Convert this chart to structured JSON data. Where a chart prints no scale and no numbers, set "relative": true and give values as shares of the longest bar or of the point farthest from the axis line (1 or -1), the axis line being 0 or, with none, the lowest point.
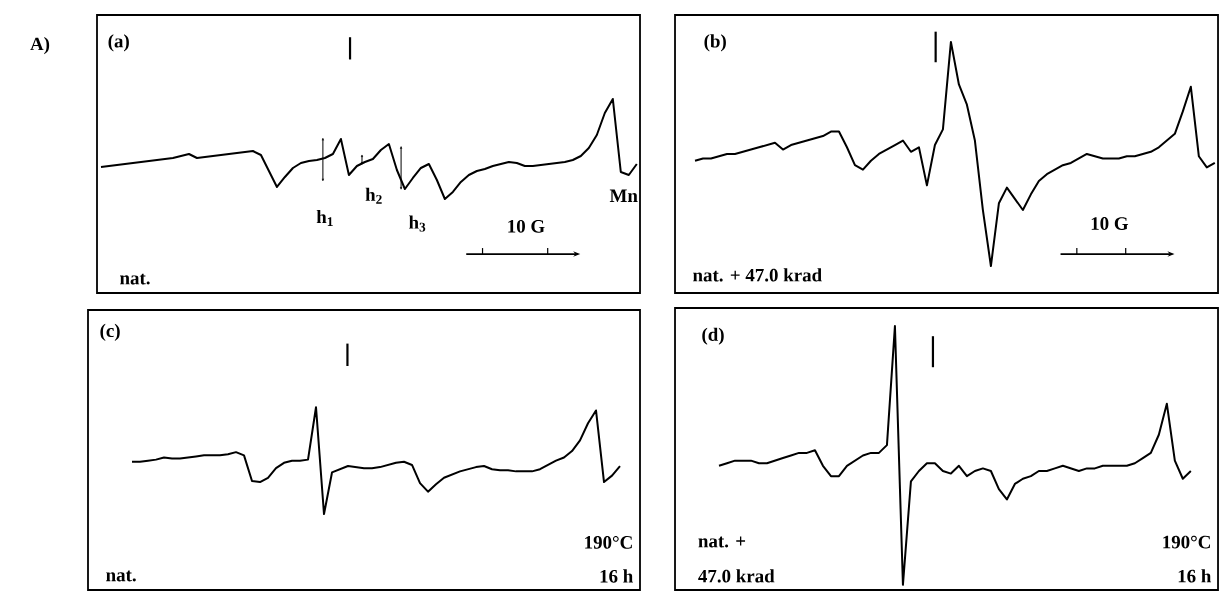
{
  "chart_data": [
    {
      "type": "line",
      "relative": true,
      "color": "#000000",
      "categories": [
        null,
        null,
        null,
        null,
        null,
        null,
        null,
        null,
        null,
        null,
        null,
        null,
        null,
        null,
        null,
        null,
        null,
        null,
        null,
        null,
        null,
        null,
        null,
        null,
        null,
        null,
        null,
        null,
        null,
        null,
        null,
        null,
        null,
        null,
        null,
        null,
        null,
        null,
        null,
        null,
        null,
        null,
        null,
        null,
        null,
        null,
        null,
        null,
        null,
        null,
        null,
        null,
        null,
        null,
        null,
        null,
        null,
        null,
        null,
        null,
        null,
        null,
        null,
        null,
        null,
        null,
        null,
        null
      ],
      "values": [
        0.32,
        0.33,
        0.34,
        0.35,
        0.36,
        0.37,
        0.38,
        0.39,
        0.4,
        0.41,
        0.43,
        0.45,
        0.41,
        0.42,
        0.43,
        0.44,
        0.45,
        0.46,
        0.47,
        0.48,
        0.44,
        0.28,
        0.12,
        0.22,
        0.31,
        0.36,
        0.38,
        0.39,
        0.41,
        0.45,
        0.6,
        0.24,
        0.33,
        0.37,
        0.4,
        0.49,
        0.55,
        0.29,
        0.1,
        0.21,
        0.31,
        0.35,
        0.19,
        0.0,
        0.07,
        0.17,
        0.24,
        0.28,
        0.3,
        0.33,
        0.35,
        0.37,
        0.36,
        0.33,
        0.33,
        0.34,
        0.35,
        0.36,
        0.37,
        0.39,
        0.43,
        0.51,
        0.64,
        0.86,
        1.0,
        0.27,
        0.24,
        0.35
      ],
      "annotations": [
        "A)",
        "(a)",
        "nat.",
        "h$_{1}$",
        "h$_{2}$",
        "h$_{3}$",
        "10 G",
        "Mn"
      ]
    },
    {
      "type": "line",
      "relative": true,
      "color": "#000000",
      "categories": [
        null,
        null,
        null,
        null,
        null,
        null,
        null,
        null,
        null,
        null,
        null,
        null,
        null,
        null,
        null,
        null,
        null,
        null,
        null,
        null,
        null,
        null,
        null,
        null,
        null,
        null,
        null,
        null,
        null,
        null,
        null,
        null,
        null,
        null,
        null,
        null,
        null,
        null,
        null,
        null,
        null,
        null,
        null,
        null,
        null,
        null,
        null,
        null,
        null,
        null,
        null,
        null,
        null,
        null,
        null,
        null,
        null,
        null,
        null,
        null,
        null,
        null,
        null,
        null,
        null,
        null,
        null,
        null
      ],
      "values": [
        null,
        null,
        0.47,
        0.48,
        0.48,
        0.49,
        0.5,
        0.5,
        0.51,
        0.52,
        0.53,
        0.54,
        0.55,
        0.52,
        0.54,
        0.55,
        0.56,
        0.57,
        0.58,
        0.6,
        0.6,
        0.53,
        0.45,
        0.43,
        0.47,
        0.5,
        0.52,
        0.54,
        0.56,
        0.51,
        0.53,
        0.36,
        0.54,
        0.61,
        1.0,
        0.81,
        0.72,
        0.56,
        0.25,
        0.0,
        0.28,
        0.35,
        0.3,
        0.25,
        0.32,
        0.38,
        0.41,
        0.43,
        0.45,
        0.46,
        0.48,
        0.5,
        0.49,
        0.48,
        0.48,
        0.48,
        0.49,
        0.49,
        0.5,
        0.51,
        0.53,
        0.56,
        0.59,
        0.69,
        0.8,
        0.49,
        0.44,
        0.46
      ],
      "annotations": [
        "(b)",
        "nat. + 47.0 krad",
        "10 G"
      ]
    },
    {
      "type": "line",
      "relative": true,
      "color": "#000000",
      "categories": [
        null,
        null,
        null,
        null,
        null,
        null,
        null,
        null,
        null,
        null,
        null,
        null,
        null,
        null,
        null,
        null,
        null,
        null,
        null,
        null,
        null,
        null,
        null,
        null,
        null,
        null,
        null,
        null,
        null,
        null,
        null,
        null,
        null,
        null,
        null,
        null,
        null,
        null,
        null,
        null,
        null,
        null,
        null,
        null,
        null,
        null,
        null,
        null,
        null,
        null,
        null,
        null,
        null,
        null,
        null,
        null,
        null,
        null,
        null,
        null,
        null,
        null,
        null,
        null,
        null,
        null,
        null,
        null
      ],
      "values": [
        null,
        null,
        null,
        null,
        null,
        0.49,
        0.49,
        0.5,
        0.51,
        0.53,
        0.52,
        0.52,
        0.53,
        0.54,
        0.55,
        0.55,
        0.55,
        0.56,
        0.58,
        0.55,
        0.31,
        0.3,
        0.34,
        0.43,
        0.48,
        0.5,
        0.5,
        0.51,
        1.0,
        0.0,
        0.39,
        0.42,
        0.45,
        0.44,
        0.43,
        0.43,
        0.44,
        0.46,
        0.48,
        0.49,
        0.46,
        0.29,
        0.21,
        0.28,
        0.34,
        0.37,
        0.4,
        0.42,
        0.44,
        0.45,
        0.42,
        0.41,
        0.41,
        0.4,
        0.4,
        0.4,
        0.42,
        0.46,
        0.5,
        0.53,
        0.59,
        0.69,
        0.85,
        0.97,
        0.3,
        0.36,
        0.45,
        null
      ],
      "annotations": [
        "(c)",
        "nat.",
        "190°C",
        "16 h"
      ]
    },
    {
      "type": "line",
      "relative": true,
      "color": "#000000",
      "categories": [
        null,
        null,
        null,
        null,
        null,
        null,
        null,
        null,
        null,
        null,
        null,
        null,
        null,
        null,
        null,
        null,
        null,
        null,
        null,
        null,
        null,
        null,
        null,
        null,
        null,
        null,
        null,
        null,
        null,
        null,
        null,
        null,
        null,
        null,
        null,
        null,
        null,
        null,
        null,
        null,
        null,
        null,
        null,
        null,
        null,
        null,
        null,
        null,
        null,
        null,
        null,
        null,
        null,
        null,
        null,
        null,
        null,
        null,
        null,
        null,
        null,
        null,
        null,
        null,
        null,
        null,
        null,
        null
      ],
      "values": [
        null,
        null,
        null,
        null,
        null,
        0.46,
        0.47,
        0.48,
        0.48,
        0.48,
        0.47,
        0.47,
        0.48,
        0.49,
        0.5,
        0.51,
        0.51,
        0.52,
        0.46,
        0.42,
        0.42,
        0.46,
        0.48,
        0.5,
        0.51,
        0.51,
        0.54,
        1.0,
        0.0,
        0.4,
        0.44,
        0.47,
        0.47,
        0.44,
        0.43,
        0.46,
        0.42,
        0.44,
        0.45,
        0.44,
        0.37,
        0.33,
        0.39,
        0.41,
        0.42,
        0.44,
        0.44,
        0.45,
        0.46,
        0.45,
        0.44,
        0.45,
        0.45,
        0.46,
        0.46,
        0.46,
        0.46,
        0.47,
        0.49,
        0.51,
        0.58,
        0.7,
        0.48,
        0.41,
        0.44,
        null,
        null,
        null
      ],
      "annotations": [
        "(d)",
        "nat. +",
        "47.0 krad",
        "190°C",
        "16 h"
      ]
    }
  ]
}
